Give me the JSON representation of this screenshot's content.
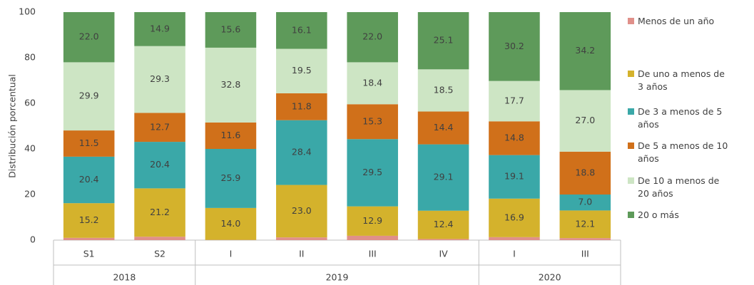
{
  "chart_data": {
    "type": "stacked-bar",
    "ylabel": "Distribución porcentual",
    "groups": [
      {
        "label": "2018",
        "categories": [
          "S1",
          "S2"
        ]
      },
      {
        "label": "2019",
        "categories": [
          "I",
          "II",
          "III",
          "IV"
        ]
      },
      {
        "label": "2020",
        "categories": [
          "I",
          "III"
        ]
      }
    ],
    "ylim": [
      0,
      100
    ],
    "yticks": [
      0,
      20,
      40,
      60,
      80,
      100
    ],
    "series": [
      {
        "name": "Menos de un año",
        "color": "#e0908a",
        "values": [
          1.0,
          1.5,
          0.1,
          1.2,
          1.9,
          0.5,
          1.3,
          0.9
        ]
      },
      {
        "name": "De uno a menos de 3 años",
        "color": "#d4b22c",
        "values": [
          15.2,
          21.2,
          14.0,
          23.0,
          12.9,
          12.4,
          16.9,
          12.1
        ],
        "value_labels": [
          "15.2",
          "21.2",
          "14.0",
          "23.0",
          "12.9",
          "12.4",
          "16.9",
          "12.1"
        ]
      },
      {
        "name": "De 3 a menos de 5 años",
        "color": "#3aa8a8",
        "values": [
          20.4,
          20.4,
          25.9,
          28.4,
          29.5,
          29.1,
          19.1,
          7.0
        ],
        "value_labels": [
          "20.4",
          "20.4",
          "25.9",
          "28.4",
          "29.5",
          "29.1",
          "19.1",
          "7.0"
        ]
      },
      {
        "name": "De 5 a menos de 10 años",
        "color": "#d0701a",
        "values": [
          11.5,
          12.7,
          11.6,
          11.8,
          15.3,
          14.4,
          14.8,
          18.8
        ],
        "value_labels": [
          "11.5",
          "12.7",
          "11.6",
          "11.8",
          "15.3",
          "14.4",
          "14.8",
          "18.8"
        ]
      },
      {
        "name": "De 10 a menos de 20 años",
        "color": "#cde5c4",
        "values": [
          29.9,
          29.3,
          32.8,
          19.5,
          18.4,
          18.5,
          17.7,
          27.0
        ],
        "value_labels": [
          "29.9",
          "29.3",
          "32.8",
          "19.5",
          "18.4",
          "18.5",
          "17.7",
          "27.0"
        ]
      },
      {
        "name": "20 o más",
        "color": "#5e9a5a",
        "values": [
          22.0,
          14.9,
          15.6,
          16.1,
          22.0,
          25.1,
          30.2,
          34.2
        ],
        "value_labels": [
          "22.0",
          "14.9",
          "15.6",
          "16.1",
          "22.0",
          "25.1",
          "30.2",
          "34.2"
        ]
      }
    ]
  }
}
